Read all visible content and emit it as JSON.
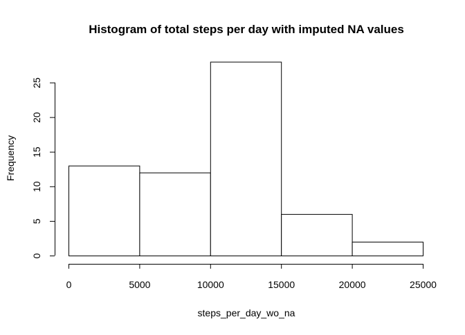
{
  "chart_data": {
    "type": "bar",
    "title": "Histogram of total steps per day with imputed NA values",
    "xlabel": "steps_per_day_wo_na",
    "ylabel": "Frequency",
    "bins": [
      {
        "start": 0,
        "end": 5000,
        "count": 13
      },
      {
        "start": 5000,
        "end": 10000,
        "count": 12
      },
      {
        "start": 10000,
        "end": 15000,
        "count": 28
      },
      {
        "start": 15000,
        "end": 20000,
        "count": 6
      },
      {
        "start": 20000,
        "end": 25000,
        "count": 2
      }
    ],
    "xlim": [
      0,
      25000
    ],
    "ylim": [
      0,
      28
    ],
    "x_ticks": [
      0,
      5000,
      10000,
      15000,
      20000,
      25000
    ],
    "x_tick_labels": [
      "0",
      "5000",
      "10000",
      "15000",
      "20000",
      "25000"
    ],
    "y_ticks": [
      0,
      5,
      10,
      15,
      20,
      25
    ],
    "y_tick_labels": [
      "0",
      "5",
      "10",
      "15",
      "20",
      "25"
    ],
    "grid": false,
    "legend": "none",
    "colors": {
      "bar_fill": "#ffffff",
      "bar_stroke": "#000000",
      "axis": "#000000"
    }
  }
}
